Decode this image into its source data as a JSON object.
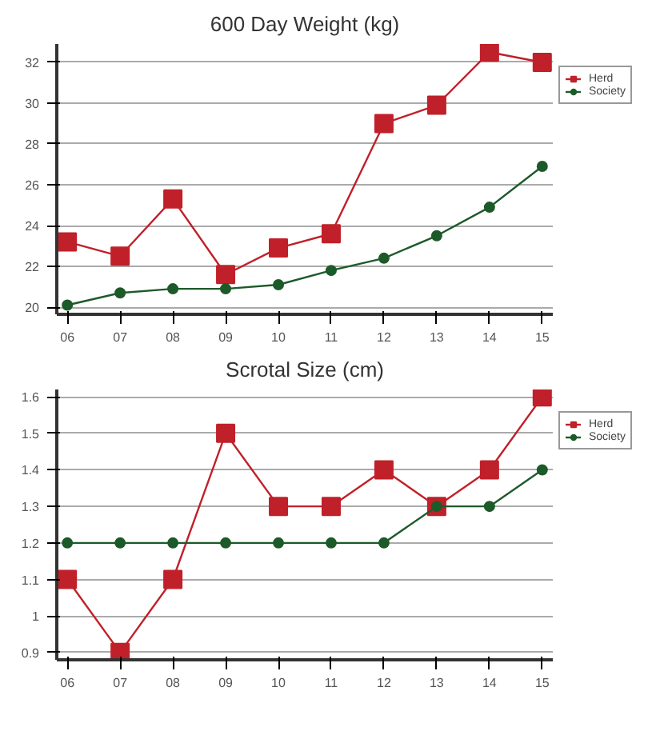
{
  "chart_data": [
    {
      "type": "line",
      "title": "600 Day Weight (kg)",
      "categories": [
        "06",
        "07",
        "08",
        "09",
        "10",
        "11",
        "12",
        "13",
        "14",
        "15"
      ],
      "ylim": [
        19.65,
        32.9
      ],
      "yticks": [
        20,
        22,
        24,
        26,
        28,
        30,
        32
      ],
      "grid": "y",
      "legend": "top right",
      "series": [
        {
          "name": "Herd",
          "color": "#c0202a",
          "marker": "square",
          "values": [
            23.2,
            22.5,
            25.3,
            21.6,
            22.9,
            23.6,
            29.0,
            29.9,
            32.5,
            32.0
          ]
        },
        {
          "name": "Society",
          "color": "#1d5a2a",
          "marker": "circle",
          "values": [
            20.1,
            20.7,
            20.9,
            20.9,
            21.1,
            21.8,
            22.4,
            23.5,
            24.9,
            26.9
          ]
        }
      ]
    },
    {
      "type": "line",
      "title": "Scrotal Size (cm)",
      "categories": [
        "06",
        "07",
        "08",
        "09",
        "10",
        "11",
        "12",
        "13",
        "14",
        "15"
      ],
      "ylim": [
        0.88,
        1.62
      ],
      "yticks": [
        0.9,
        1,
        1.1,
        1.2,
        1.3,
        1.4,
        1.5,
        1.6
      ],
      "grid": "y",
      "legend": "top right",
      "series": [
        {
          "name": "Herd",
          "color": "#c0202a",
          "marker": "square",
          "values": [
            1.1,
            0.9,
            1.1,
            1.5,
            1.3,
            1.3,
            1.4,
            1.3,
            1.4,
            1.6
          ]
        },
        {
          "name": "Society",
          "color": "#1d5a2a",
          "marker": "circle",
          "values": [
            1.2,
            1.2,
            1.2,
            1.2,
            1.2,
            1.2,
            1.2,
            1.3,
            1.3,
            1.4
          ]
        }
      ]
    }
  ]
}
